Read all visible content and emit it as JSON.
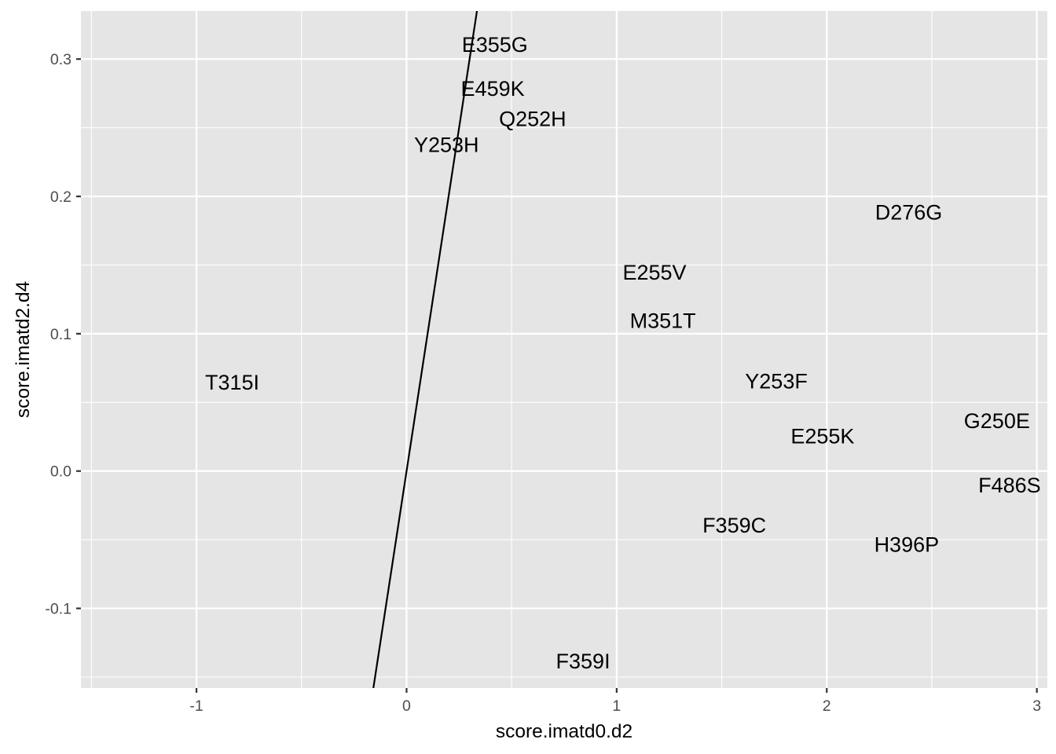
{
  "chart_data": {
    "type": "scatter",
    "title": "",
    "xlabel": "score.imatd0.d2",
    "ylabel": "score.imatd2.d4",
    "xlim": [
      -1.55,
      3.05
    ],
    "ylim": [
      -0.158,
      0.335
    ],
    "x_ticks": [
      -1,
      0,
      1,
      2,
      3
    ],
    "x_tick_labels": [
      "-1",
      "0",
      "1",
      "2",
      "3"
    ],
    "y_ticks": [
      -0.1,
      0.0,
      0.1,
      0.2,
      0.3
    ],
    "y_tick_labels": [
      "-0.1",
      "0.0",
      "0.1",
      "0.2",
      "0.3"
    ],
    "grid": true,
    "legend": "none",
    "marker": "text",
    "points": [
      {
        "label": "E355G",
        "x": 0.42,
        "y": 0.311
      },
      {
        "label": "E459K",
        "x": 0.41,
        "y": 0.279
      },
      {
        "label": "Q252H",
        "x": 0.6,
        "y": 0.257
      },
      {
        "label": "Y253H",
        "x": 0.19,
        "y": 0.238
      },
      {
        "label": "D276G",
        "x": 2.39,
        "y": 0.189
      },
      {
        "label": "E255V",
        "x": 1.18,
        "y": 0.145
      },
      {
        "label": "M351T",
        "x": 1.22,
        "y": 0.11
      },
      {
        "label": "T315I",
        "x": -0.83,
        "y": 0.065
      },
      {
        "label": "Y253F",
        "x": 1.76,
        "y": 0.066
      },
      {
        "label": "G250E",
        "x": 2.81,
        "y": 0.037
      },
      {
        "label": "E255K",
        "x": 1.98,
        "y": 0.026
      },
      {
        "label": "F486S",
        "x": 2.87,
        "y": -0.01
      },
      {
        "label": "F359C",
        "x": 1.56,
        "y": -0.039
      },
      {
        "label": "H396P",
        "x": 2.38,
        "y": -0.053
      },
      {
        "label": "F359I",
        "x": 0.84,
        "y": -0.138
      }
    ],
    "reference_line": {
      "intercept": 0.0,
      "slope": 1.0
    }
  }
}
